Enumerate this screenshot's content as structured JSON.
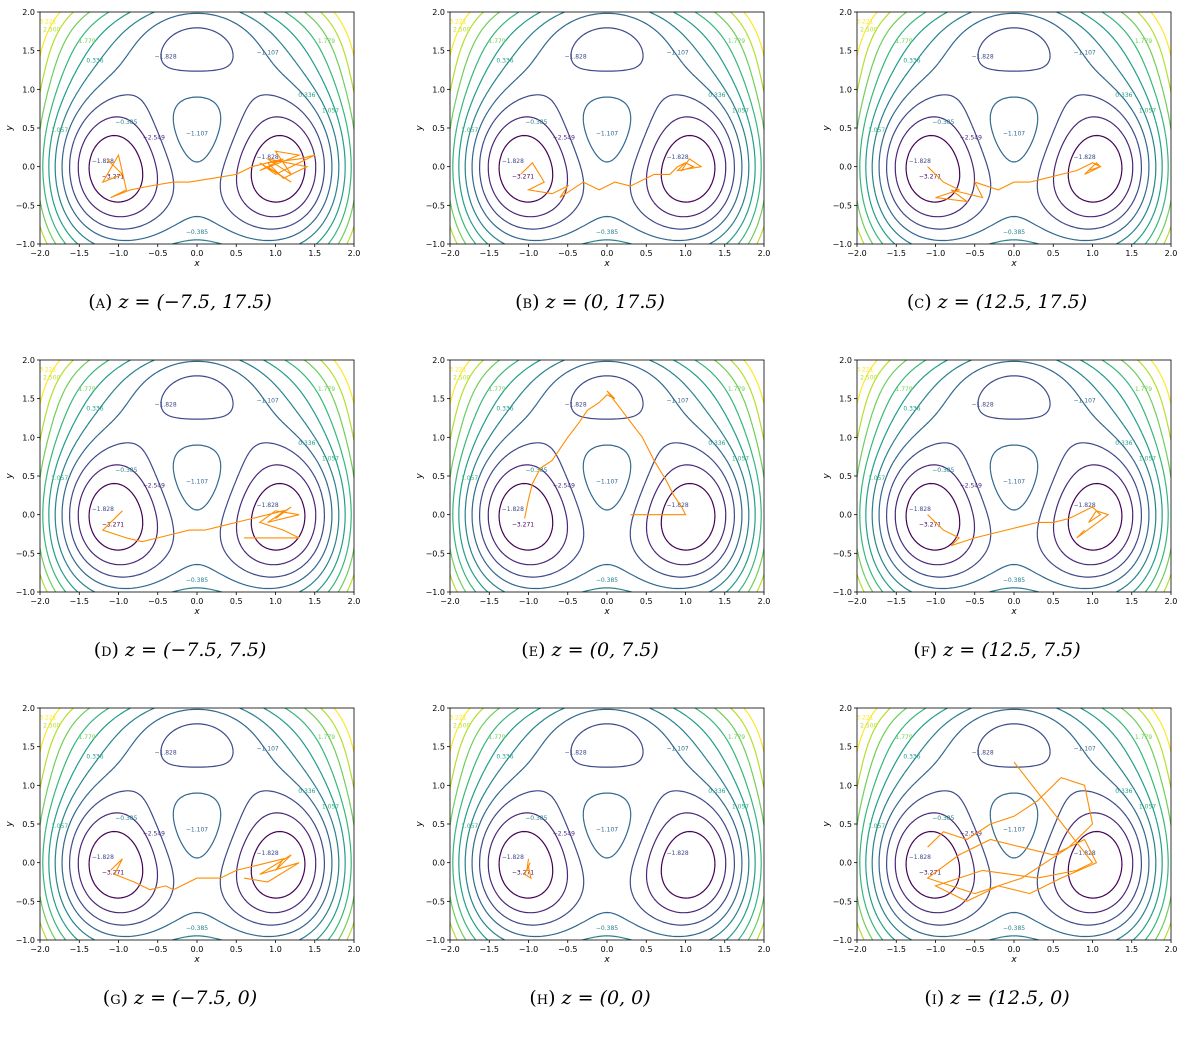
{
  "chart_data": [
    {
      "type": "contour",
      "panel": "A",
      "caption_letter": "(a)",
      "caption_eq": "z = (−7.5, 17.5)",
      "xlabel": "x",
      "ylabel": "y",
      "xlim": [
        -2.0,
        2.0
      ],
      "ylim": [
        -1.0,
        2.0
      ],
      "xticks": [
        "−2.0",
        "−1.5",
        "−1.0",
        "−0.5",
        "0.0",
        "0.5",
        "1.0",
        "1.5",
        "2.0"
      ],
      "yticks": [
        "−1.0",
        "−0.5",
        "0.0",
        "0.5",
        "1.0",
        "1.5",
        "2.0"
      ],
      "contour_levels": [
        "−3.271",
        "−2.549",
        "−1.828",
        "−1.107",
        "−0.385",
        "0.336",
        "1.057",
        "1.779",
        "2.500",
        "3.221"
      ],
      "trajectory": {
        "color": "#ff8c00",
        "x": [
          -1.05,
          -1.15,
          -0.95,
          -1.2,
          -1.0,
          -0.9,
          -1.1,
          -0.85,
          -0.6,
          -0.3,
          -0.1,
          0.2,
          0.5,
          0.7,
          0.9,
          1.1,
          0.8,
          1.3,
          1.0,
          1.2,
          0.9,
          1.4,
          1.1,
          0.9,
          1.3,
          1.5,
          1.0,
          0.8,
          1.2,
          0.9
        ],
        "y": [
          0.0,
          0.1,
          -0.1,
          -0.2,
          0.15,
          -0.3,
          -0.4,
          -0.3,
          -0.25,
          -0.2,
          -0.2,
          -0.15,
          -0.1,
          0.0,
          0.05,
          0.1,
          -0.05,
          0.15,
          0.2,
          -0.1,
          0.1,
          0.0,
          -0.15,
          0.05,
          0.1,
          0.15,
          -0.1,
          0.05,
          -0.2,
          0.0
        ]
      }
    },
    {
      "type": "contour",
      "panel": "B",
      "caption_letter": "(b)",
      "caption_eq": "z = (0, 17.5)",
      "xlabel": "x",
      "ylabel": "y",
      "xlim": [
        -2.0,
        2.0
      ],
      "ylim": [
        -1.0,
        2.0
      ],
      "xticks": [
        "−2.0",
        "−1.5",
        "−1.0",
        "−0.5",
        "0.0",
        "0.5",
        "1.0",
        "1.5",
        "2.0"
      ],
      "yticks": [
        "−1.0",
        "−0.5",
        "0.0",
        "0.5",
        "1.0",
        "1.5",
        "2.0"
      ],
      "contour_levels": [
        "−3.271",
        "−2.549",
        "−1.828",
        "−1.107",
        "−0.385",
        "0.336",
        "1.057",
        "1.779",
        "2.500",
        "3.221"
      ],
      "trajectory": {
        "color": "#ff8c00",
        "x": [
          -1.0,
          -1.1,
          -0.95,
          -0.8,
          -1.0,
          -0.7,
          -0.5,
          -0.6,
          -0.3,
          -0.1,
          0.1,
          0.3,
          0.5,
          0.6,
          0.8,
          0.9,
          1.0,
          1.1,
          0.95,
          1.05,
          1.2,
          0.9,
          1.0,
          1.1
        ],
        "y": [
          0.0,
          -0.1,
          0.05,
          -0.2,
          -0.3,
          -0.35,
          -0.25,
          -0.4,
          -0.2,
          -0.3,
          -0.2,
          -0.25,
          -0.15,
          -0.1,
          -0.1,
          0.0,
          0.05,
          0.0,
          -0.05,
          0.1,
          0.0,
          -0.05,
          0.05,
          0.0
        ]
      }
    },
    {
      "type": "contour",
      "panel": "C",
      "caption_letter": "(c)",
      "caption_eq": "z = (12.5, 17.5)",
      "xlabel": "x",
      "ylabel": "y",
      "xlim": [
        -2.0,
        2.0
      ],
      "ylim": [
        -1.0,
        2.0
      ],
      "xticks": [
        "−2.0",
        "−1.5",
        "−1.0",
        "−0.5",
        "0.0",
        "0.5",
        "1.0",
        "1.5",
        "2.0"
      ],
      "yticks": [
        "−1.0",
        "−0.5",
        "0.0",
        "0.5",
        "1.0",
        "1.5",
        "2.0"
      ],
      "contour_levels": [
        "−3.271",
        "−2.549",
        "−1.828",
        "−1.107",
        "−0.385",
        "0.336",
        "1.057",
        "1.779",
        "2.500",
        "3.221"
      ],
      "trajectory": {
        "color": "#ff8c00",
        "x": [
          -1.0,
          -1.1,
          -0.9,
          -0.7,
          -1.0,
          -0.6,
          -0.8,
          -0.4,
          -0.5,
          -0.2,
          0.0,
          0.2,
          0.4,
          0.6,
          0.8,
          0.9,
          1.0,
          1.1,
          0.95,
          1.05,
          1.1,
          0.9,
          1.0
        ],
        "y": [
          -0.1,
          0.0,
          -0.2,
          -0.3,
          -0.4,
          -0.45,
          -0.3,
          -0.4,
          -0.2,
          -0.3,
          -0.2,
          -0.2,
          -0.15,
          -0.1,
          -0.05,
          0.0,
          0.05,
          0.0,
          -0.05,
          0.05,
          0.0,
          -0.1,
          0.0
        ]
      }
    },
    {
      "type": "contour",
      "panel": "D",
      "caption_letter": "(d)",
      "caption_eq": "z = (−7.5, 7.5)",
      "xlabel": "x",
      "ylabel": "y",
      "xlim": [
        -2.0,
        2.0
      ],
      "ylim": [
        -1.0,
        2.0
      ],
      "xticks": [
        "−2.0",
        "−1.5",
        "−1.0",
        "−0.5",
        "0.0",
        "0.5",
        "1.0",
        "1.5",
        "2.0"
      ],
      "yticks": [
        "−1.0",
        "−0.5",
        "0.0",
        "0.5",
        "1.0",
        "1.5",
        "2.0"
      ],
      "contour_levels": [
        "−3.271",
        "−2.549",
        "−1.828",
        "−1.107",
        "−0.385",
        "0.336",
        "1.057",
        "1.779",
        "2.500",
        "3.221"
      ],
      "trajectory": {
        "color": "#ff8c00",
        "x": [
          -1.0,
          -1.1,
          -0.95,
          -1.2,
          -0.9,
          -0.7,
          -0.5,
          -0.3,
          -0.1,
          0.1,
          0.3,
          0.5,
          0.7,
          0.9,
          1.1,
          1.0,
          1.2,
          0.9,
          1.3,
          1.0,
          0.8,
          1.1,
          1.3,
          0.6
        ],
        "y": [
          0.0,
          -0.1,
          0.05,
          -0.2,
          -0.3,
          -0.35,
          -0.3,
          -0.25,
          -0.2,
          -0.2,
          -0.15,
          -0.1,
          -0.05,
          0.0,
          0.05,
          -0.05,
          0.1,
          -0.1,
          0.0,
          0.05,
          -0.1,
          -0.2,
          -0.3,
          -0.3
        ]
      }
    },
    {
      "type": "contour",
      "panel": "E",
      "caption_letter": "(e)",
      "caption_eq": "z = (0, 7.5)",
      "xlabel": "x",
      "ylabel": "y",
      "xlim": [
        -2.0,
        2.0
      ],
      "ylim": [
        -1.0,
        2.0
      ],
      "xticks": [
        "−2.0",
        "−1.5",
        "−1.0",
        "−0.5",
        "0.0",
        "0.5",
        "1.0",
        "1.5",
        "2.0"
      ],
      "yticks": [
        "−1.0",
        "−0.5",
        "0.0",
        "0.5",
        "1.0",
        "1.5",
        "2.0"
      ],
      "contour_levels": [
        "−3.271",
        "−2.549",
        "−1.828",
        "−1.107",
        "−0.385",
        "0.336",
        "1.057",
        "1.779",
        "2.500",
        "3.221"
      ],
      "trajectory": {
        "color": "#ff8c00",
        "x": [
          -1.05,
          -1.0,
          -0.95,
          -0.85,
          -0.7,
          -0.6,
          -0.5,
          -0.35,
          -0.25,
          -0.1,
          0.0,
          0.1,
          0.0,
          0.15,
          0.3,
          0.45,
          0.6,
          0.75,
          0.85,
          0.95,
          1.0,
          0.3
        ],
        "y": [
          -0.05,
          0.2,
          0.4,
          0.6,
          0.7,
          0.85,
          1.0,
          1.2,
          1.35,
          1.45,
          1.55,
          1.5,
          1.6,
          1.4,
          1.2,
          1.0,
          0.7,
          0.45,
          0.25,
          0.1,
          0.0,
          0.0
        ]
      }
    },
    {
      "type": "contour",
      "panel": "F",
      "caption_letter": "(f)",
      "caption_eq": "z = (12.5, 7.5)",
      "xlabel": "x",
      "ylabel": "y",
      "xlim": [
        -2.0,
        2.0
      ],
      "ylim": [
        -1.0,
        2.0
      ],
      "xticks": [
        "−2.0",
        "−1.5",
        "−1.0",
        "−0.5",
        "0.0",
        "0.5",
        "1.0",
        "1.5",
        "2.0"
      ],
      "yticks": [
        "−1.0",
        "−0.5",
        "0.0",
        "0.5",
        "1.0",
        "1.5",
        "2.0"
      ],
      "contour_levels": [
        "−3.271",
        "−2.549",
        "−1.828",
        "−1.107",
        "−0.385",
        "0.336",
        "1.057",
        "1.779",
        "2.500",
        "3.221"
      ],
      "trajectory": {
        "color": "#ff8c00",
        "x": [
          -1.1,
          -1.0,
          -0.9,
          -0.7,
          -0.8,
          -0.5,
          -0.3,
          -0.1,
          0.1,
          0.3,
          0.5,
          0.7,
          0.8,
          0.9,
          1.0,
          1.1,
          0.95,
          1.05,
          1.2,
          0.8,
          0.9
        ],
        "y": [
          0.0,
          -0.1,
          -0.2,
          -0.3,
          -0.4,
          -0.3,
          -0.25,
          -0.2,
          -0.15,
          -0.1,
          -0.1,
          -0.05,
          0.0,
          0.05,
          0.1,
          0.0,
          -0.1,
          0.05,
          0.0,
          -0.3,
          -0.2
        ]
      }
    },
    {
      "type": "contour",
      "panel": "G",
      "caption_letter": "(g)",
      "caption_eq": "z = (−7.5, 0)",
      "xlabel": "x",
      "ylabel": "y",
      "xlim": [
        -2.0,
        2.0
      ],
      "ylim": [
        -1.0,
        2.0
      ],
      "xticks": [
        "−2.0",
        "−1.5",
        "−1.0",
        "−0.5",
        "0.0",
        "0.5",
        "1.0",
        "1.5",
        "2.0"
      ],
      "yticks": [
        "−1.0",
        "−0.5",
        "0.0",
        "0.5",
        "1.0",
        "1.5",
        "2.0"
      ],
      "contour_levels": [
        "−3.271",
        "−2.549",
        "−1.828",
        "−1.107",
        "−0.385",
        "0.336",
        "1.057",
        "1.779",
        "2.500",
        "3.221"
      ],
      "trajectory": {
        "color": "#ff8c00",
        "x": [
          -1.0,
          -1.1,
          -0.95,
          -1.05,
          -0.8,
          -0.6,
          -0.4,
          -0.3,
          0.0,
          0.3,
          0.5,
          0.7,
          0.9,
          1.1,
          1.0,
          1.2,
          0.8,
          1.3,
          0.9,
          0.6
        ],
        "y": [
          0.0,
          -0.1,
          0.05,
          -0.15,
          -0.25,
          -0.35,
          -0.3,
          -0.35,
          -0.2,
          -0.2,
          -0.1,
          -0.05,
          0.0,
          0.05,
          -0.1,
          0.1,
          -0.15,
          0.0,
          -0.25,
          -0.2
        ]
      }
    },
    {
      "type": "contour",
      "panel": "H",
      "caption_letter": "(h)",
      "caption_eq": "z = (0, 0)",
      "xlabel": "x",
      "ylabel": "y",
      "xlim": [
        -2.0,
        2.0
      ],
      "ylim": [
        -1.0,
        2.0
      ],
      "xticks": [
        "−2.0",
        "−1.5",
        "−1.0",
        "−0.5",
        "0.0",
        "0.5",
        "1.0",
        "1.5",
        "2.0"
      ],
      "yticks": [
        "−1.0",
        "−0.5",
        "0.0",
        "0.5",
        "1.0",
        "1.5",
        "2.0"
      ],
      "contour_levels": [
        "−3.271",
        "−2.549",
        "−1.828",
        "−1.107",
        "−0.385",
        "0.336",
        "1.057",
        "1.779",
        "2.500",
        "3.221"
      ],
      "trajectory": {
        "color": "#ff8c00",
        "x": [
          -1.0,
          -1.02,
          -0.98,
          -1.05,
          -0.97,
          -1.0
        ],
        "y": [
          0.05,
          -0.1,
          0.0,
          -0.15,
          -0.2,
          -0.05
        ]
      }
    },
    {
      "type": "contour",
      "panel": "I",
      "caption_letter": "(i)",
      "caption_eq": "z = (12.5, 0)",
      "xlabel": "x",
      "ylabel": "y",
      "xlim": [
        -2.0,
        2.0
      ],
      "ylim": [
        -1.0,
        2.0
      ],
      "xticks": [
        "−2.0",
        "−1.5",
        "−1.0",
        "−0.5",
        "0.0",
        "0.5",
        "1.0",
        "1.5",
        "2.0"
      ],
      "yticks": [
        "−1.0",
        "−0.5",
        "0.0",
        "0.5",
        "1.0",
        "1.5",
        "2.0"
      ],
      "contour_levels": [
        "−3.271",
        "−2.549",
        "−1.828",
        "−1.107",
        "−0.385",
        "0.336",
        "1.057",
        "1.779",
        "2.500",
        "3.221"
      ],
      "trajectory": {
        "color": "#ff8c00",
        "x": [
          -1.1,
          -0.9,
          -0.6,
          -0.3,
          0.0,
          0.3,
          0.6,
          0.9,
          1.0,
          0.7,
          0.4,
          0.1,
          -0.2,
          -0.5,
          -0.8,
          -1.1,
          -0.7,
          -0.3,
          0.1,
          0.5,
          0.9,
          1.05,
          0.6,
          0.2,
          -0.2,
          -0.6,
          -1.0,
          -0.4,
          0.3,
          0.8,
          1.0,
          0.0
        ],
        "y": [
          0.2,
          0.4,
          0.3,
          0.5,
          0.6,
          0.8,
          1.1,
          1.0,
          0.5,
          0.2,
          0.0,
          -0.2,
          -0.3,
          -0.4,
          -0.3,
          -0.2,
          0.1,
          0.3,
          0.2,
          0.1,
          0.3,
          0.0,
          -0.2,
          -0.4,
          -0.3,
          -0.5,
          -0.3,
          -0.1,
          -0.2,
          -0.1,
          0.0,
          1.3
        ]
      }
    }
  ]
}
